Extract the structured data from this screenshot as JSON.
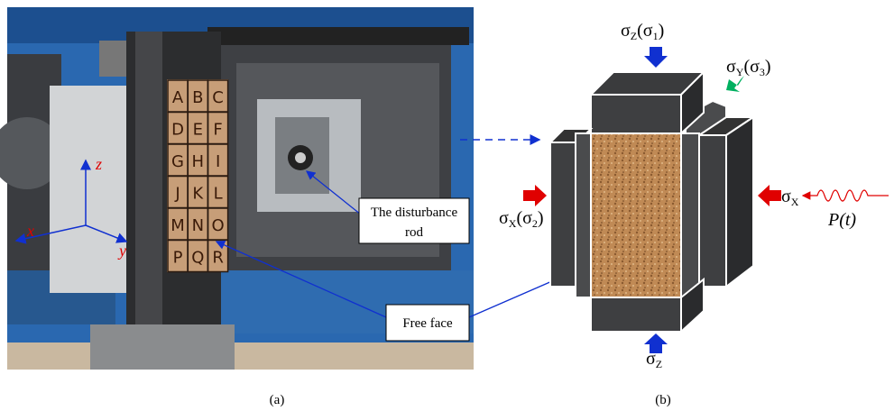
{
  "panel_a": {
    "axes": {
      "z": "z",
      "x": "x",
      "y": "y"
    },
    "grid_letters": [
      "A",
      "B",
      "C",
      "D",
      "E",
      "F",
      "G",
      "H",
      "I",
      "J",
      "K",
      "L",
      "M",
      "N",
      "O",
      "P",
      "Q",
      "R"
    ],
    "callouts": {
      "rod": [
        "The disturbance",
        "rod"
      ],
      "free_face": "Free face"
    },
    "caption": "(a)"
  },
  "panel_b": {
    "labels": {
      "sigma_z1": [
        "σ",
        "Z",
        "(σ",
        "1",
        ")"
      ],
      "sigma_y3": [
        "σ",
        "Y",
        "(σ",
        "3",
        ")"
      ],
      "sigma_x": [
        "σ",
        "X"
      ],
      "sigma_x2": [
        "σ",
        "X",
        "(σ",
        "2",
        ")"
      ],
      "sigma_z": [
        "σ",
        "Z"
      ],
      "load": "P(t)"
    },
    "caption": "(b)"
  }
}
